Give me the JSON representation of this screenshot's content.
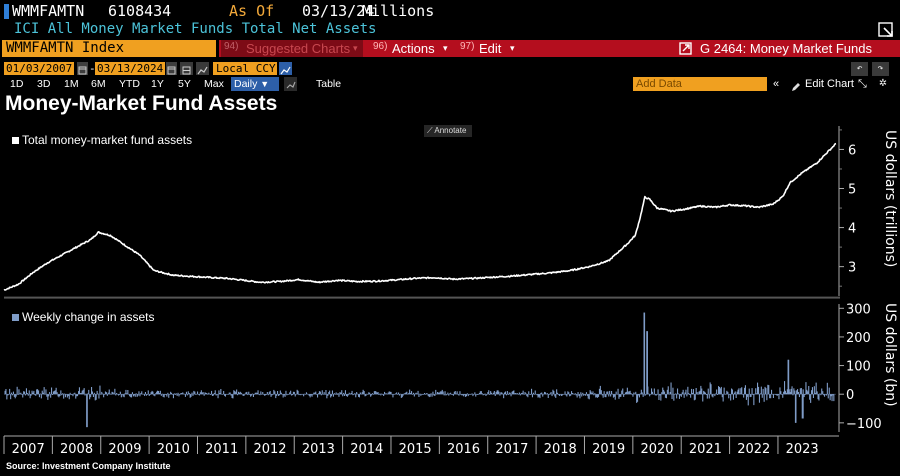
{
  "header": {
    "ticker": "WMMFAMTN",
    "security_id": "6108434",
    "asof_label": "As Of",
    "asof_date": "03/13/24",
    "units": "Millions",
    "description": "ICI All Money Market Funds Total Net Assets"
  },
  "menubar": {
    "index_field": "WMMFAMTN Index",
    "suggested_num": "94)",
    "suggested_label": "Suggested Charts",
    "actions_num": "96)",
    "actions_label": "Actions",
    "edit_num": "97)",
    "edit_label": "Edit",
    "chart_name": "G 2464: Money Market Funds"
  },
  "controls": {
    "start_date": "01/03/2007",
    "end_date": "03/13/2024",
    "currency": "Local CCY",
    "periods": [
      "1D",
      "3D",
      "1M",
      "6M",
      "YTD",
      "1Y",
      "5Y",
      "Max"
    ],
    "frequency": "Daily",
    "table_label": "Table",
    "add_data_placeholder": "Add Data",
    "edit_chart_label": "Edit Chart"
  },
  "page_title": "Money-Market Fund Assets",
  "annotate_label": "Annotate",
  "source": "Source: Investment Company Institute",
  "colors": {
    "background": "#000000",
    "line": "#ffffff",
    "bars": "#7f9cc7",
    "accent_orange": "#f0a020",
    "menu_red": "#b40e1e",
    "cyan_text": "#4cc3d9"
  },
  "chart_data": [
    {
      "type": "line",
      "legend": "Total money-market fund assets",
      "ylabel": "US dollars (trillions)",
      "ylim": [
        2.3,
        6.6
      ],
      "yticks": [
        3,
        4,
        5,
        6
      ],
      "xlim": [
        2007.0,
        2024.2
      ],
      "series": [
        {
          "name": "Total money-market fund assets",
          "x": [
            2007.0,
            2007.3,
            2007.6,
            2007.9,
            2008.2,
            2008.5,
            2008.8,
            2008.95,
            2009.2,
            2009.5,
            2009.8,
            2010.1,
            2010.5,
            2010.9,
            2011.3,
            2011.6,
            2011.9,
            2012.3,
            2012.7,
            2013.1,
            2013.5,
            2013.9,
            2014.3,
            2014.7,
            2015.1,
            2015.5,
            2015.9,
            2016.3,
            2016.7,
            2017.1,
            2017.5,
            2017.9,
            2018.3,
            2018.7,
            2019.1,
            2019.5,
            2019.9,
            2020.05,
            2020.15,
            2020.25,
            2020.35,
            2020.5,
            2020.8,
            2021.1,
            2021.4,
            2021.7,
            2022.0,
            2022.3,
            2022.6,
            2022.9,
            2023.1,
            2023.25,
            2023.5,
            2023.8,
            2024.0,
            2024.2
          ],
          "values": [
            2.4,
            2.55,
            2.85,
            3.1,
            3.3,
            3.5,
            3.7,
            3.88,
            3.8,
            3.55,
            3.3,
            2.9,
            2.78,
            2.75,
            2.72,
            2.7,
            2.66,
            2.6,
            2.62,
            2.67,
            2.6,
            2.65,
            2.62,
            2.63,
            2.66,
            2.7,
            2.72,
            2.68,
            2.7,
            2.73,
            2.76,
            2.8,
            2.84,
            2.9,
            3.0,
            3.15,
            3.6,
            3.8,
            4.25,
            4.78,
            4.72,
            4.5,
            4.42,
            4.48,
            4.55,
            4.52,
            4.58,
            4.56,
            4.52,
            4.6,
            4.8,
            5.15,
            5.4,
            5.65,
            5.9,
            6.15
          ]
        }
      ]
    },
    {
      "type": "bar",
      "legend": "Weekly change in assets",
      "ylabel": "US dollars (bn)",
      "ylim": [
        -125,
        315
      ],
      "yticks": [
        -100,
        0,
        100,
        200,
        300
      ],
      "x_tick_labels": [
        "2007",
        "2008",
        "2009",
        "2010",
        "2011",
        "2012",
        "2013",
        "2014",
        "2015",
        "2016",
        "2017",
        "2018",
        "2019",
        "2020",
        "2021",
        "2022",
        "2023"
      ],
      "notable_points": [
        {
          "x": 2008.7,
          "value": -115
        },
        {
          "x": 2020.22,
          "value": 285
        },
        {
          "x": 2020.28,
          "value": 220
        },
        {
          "x": 2023.2,
          "value": 120
        },
        {
          "x": 2023.35,
          "value": -100
        },
        {
          "x": 2023.5,
          "value": -85
        }
      ],
      "typical_abs_change": {
        "2007-2008": 25,
        "2009-2018": 15,
        "2019": 25,
        "2020-2021": 35,
        "2022-2024": 40
      }
    }
  ]
}
